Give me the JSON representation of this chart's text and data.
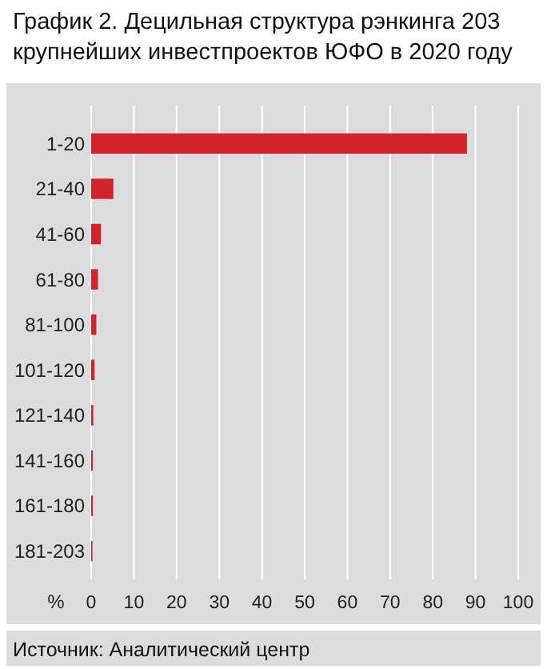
{
  "chart_data": {
    "type": "bar",
    "orientation": "horizontal",
    "title": "График 2. Децильная структура рэнкинга 203 крупнейших инвестпроектов ЮФО в 2020 году",
    "xlabel": "%",
    "categories": [
      "1-20",
      "21-40",
      "41-60",
      "61-80",
      "81-100",
      "101-120",
      "121-140",
      "141-160",
      "161-180",
      "181-203"
    ],
    "values": [
      88,
      5.2,
      2.3,
      1.6,
      1.2,
      0.8,
      0.5,
      0.4,
      0.4,
      0.3
    ],
    "color": "#d2232a",
    "xlim": [
      0,
      100
    ],
    "xticks": [
      0,
      10,
      20,
      30,
      40,
      50,
      60,
      70,
      80,
      90,
      100
    ],
    "grid": "x",
    "annotations": [
      "Источник: Аналитический центр"
    ]
  }
}
